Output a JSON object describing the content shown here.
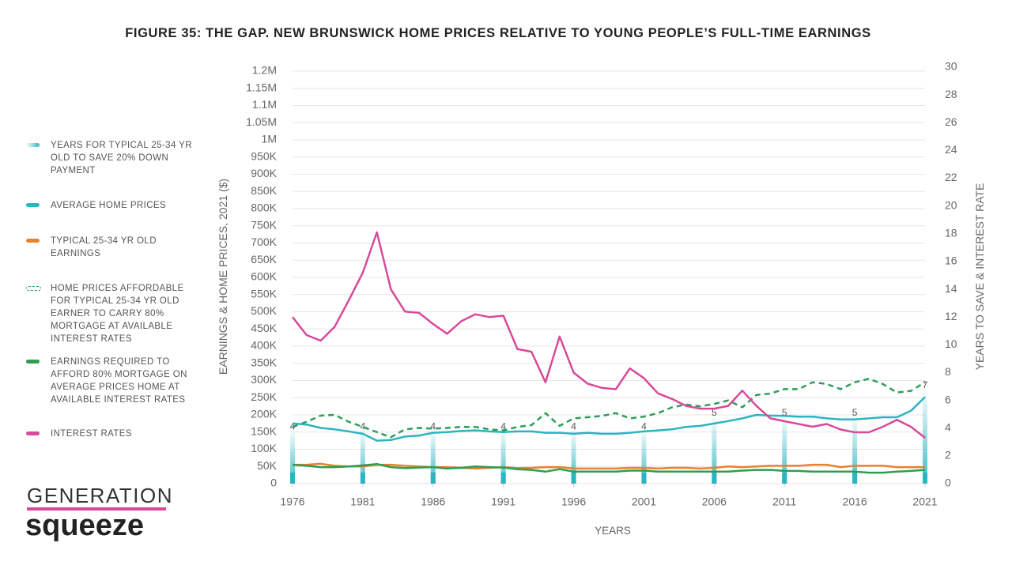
{
  "chart_data": {
    "type": "line",
    "title": "FIGURE 35: THE GAP. NEW BRUNSWICK HOME PRICES RELATIVE TO YOUNG PEOPLE’S FULL-TIME EARNINGS",
    "x_label": "YEARS",
    "y_label": "EARNINGS & HOME PRICES, 2021 ($)",
    "y2_label": "YEARS TO SAVE & INTEREST RATE",
    "brand": [
      "GENERATION",
      "squeeze"
    ],
    "x": [
      1976,
      1977,
      1978,
      1979,
      1980,
      1981,
      1982,
      1983,
      1984,
      1985,
      1986,
      1987,
      1988,
      1989,
      1990,
      1991,
      1992,
      1993,
      1994,
      1995,
      1996,
      1997,
      1998,
      1999,
      2000,
      2001,
      2002,
      2003,
      2004,
      2005,
      2006,
      2007,
      2008,
      2009,
      2010,
      2011,
      2012,
      2013,
      2014,
      2015,
      2016,
      2017,
      2018,
      2019,
      2020,
      2021
    ],
    "xlim": [
      1976,
      2021
    ],
    "xticks": [
      1976,
      1981,
      1986,
      1991,
      1996,
      2001,
      2006,
      2011,
      2016,
      2021
    ],
    "ylim": [
      0,
      1200000
    ],
    "yticks": [
      0,
      {
        "value": 50000,
        "label": "50K"
      },
      {
        "value": 100000,
        "label": "100K"
      },
      {
        "value": 150000,
        "label": "150K"
      },
      {
        "value": 200000,
        "label": "200K"
      },
      {
        "value": 250000,
        "label": "250K"
      },
      {
        "value": 300000,
        "label": "300K"
      },
      {
        "value": 350000,
        "label": "350K"
      },
      {
        "value": 400000,
        "label": "400K"
      },
      {
        "value": 450000,
        "label": "450K"
      },
      {
        "value": 500000,
        "label": "500K"
      },
      {
        "value": 550000,
        "label": "550K"
      },
      {
        "value": 600000,
        "label": "600K"
      },
      {
        "value": 650000,
        "label": "650K"
      },
      {
        "value": 700000,
        "label": "700K"
      },
      {
        "value": 750000,
        "label": "750K"
      },
      {
        "value": 800000,
        "label": "800K"
      },
      {
        "value": 850000,
        "label": "850K"
      },
      {
        "value": 900000,
        "label": "900K"
      },
      {
        "value": 950000,
        "label": "950K"
      },
      {
        "value": 1000000,
        "label": "1M"
      },
      {
        "value": 1050000,
        "label": "1.05M"
      },
      {
        "value": 1100000,
        "label": "1.1M"
      },
      {
        "value": 1150000,
        "label": "1.15M"
      },
      {
        "value": 1200000,
        "label": "1.2M"
      }
    ],
    "y2lim": [
      0,
      30
    ],
    "y2ticks": [
      0,
      2,
      4,
      6,
      8,
      10,
      12,
      14,
      16,
      18,
      20,
      22,
      24,
      26,
      28,
      30
    ],
    "grid": true,
    "years_to_save": {
      "name": "YEARS FOR TYPICAL 25-34 YR OLD TO SAVE 20% DOWN PAYMENT",
      "color": "#2bb5c0",
      "axis": "y2",
      "x": [
        1976,
        1981,
        1986,
        1991,
        1996,
        2001,
        2006,
        2011,
        2016,
        2021
      ],
      "values": [
        4,
        4,
        4,
        4,
        4,
        4,
        5,
        5,
        5,
        7
      ]
    },
    "series": [
      {
        "name": "AVERAGE HOME PRICES",
        "color": "#2bb5c0",
        "style": "solid",
        "values": [
          175000,
          172000,
          162000,
          158000,
          152000,
          145000,
          125000,
          127000,
          137000,
          140000,
          148000,
          150000,
          153000,
          155000,
          152000,
          150000,
          152000,
          152000,
          148000,
          148000,
          145000,
          148000,
          145000,
          145000,
          148000,
          152000,
          155000,
          158000,
          165000,
          168000,
          175000,
          182000,
          190000,
          200000,
          198000,
          197000,
          195000,
          195000,
          190000,
          187000,
          187000,
          190000,
          193000,
          193000,
          212000,
          252000
        ]
      },
      {
        "name": "TYPICAL 25-34 YR OLD EARNINGS",
        "color": "#e8822e",
        "style": "solid",
        "values": [
          55000,
          55000,
          58000,
          52000,
          50000,
          50000,
          55000,
          55000,
          52000,
          50000,
          48000,
          48000,
          46000,
          44000,
          46000,
          48000,
          45000,
          46000,
          48000,
          48000,
          44000,
          44000,
          44000,
          44000,
          46000,
          46000,
          44000,
          46000,
          46000,
          44000,
          46000,
          50000,
          48000,
          50000,
          52000,
          52000,
          52000,
          55000,
          55000,
          48000,
          52000,
          52000,
          52000,
          48000,
          48000,
          48000
        ]
      },
      {
        "name": "HOME PRICES AFFORDABLE FOR TYPICAL 25-34 YR OLD EARNER TO CARRY 80% MORTGAGE AT AVAILABLE INTEREST RATES",
        "color": "#2e9e5b",
        "style": "dashed",
        "values": [
          165000,
          180000,
          198000,
          200000,
          180000,
          165000,
          150000,
          135000,
          158000,
          162000,
          160000,
          162000,
          165000,
          165000,
          158000,
          155000,
          165000,
          170000,
          205000,
          168000,
          190000,
          193000,
          197000,
          205000,
          190000,
          195000,
          205000,
          222000,
          230000,
          225000,
          232000,
          242000,
          222000,
          258000,
          262000,
          275000,
          275000,
          295000,
          290000,
          275000,
          295000,
          305000,
          290000,
          265000,
          270000,
          295000
        ]
      },
      {
        "name": "EARNINGS REQUIRED TO AFFORD 80% MORTGAGE ON AVERAGE PRICES HOME AT AVAILABLE INTEREST RATES",
        "color": "#2e9e4f",
        "style": "solid",
        "values": [
          55000,
          52000,
          48000,
          48000,
          50000,
          53000,
          57000,
          48000,
          45000,
          47000,
          48000,
          44000,
          46000,
          50000,
          48000,
          47000,
          42000,
          40000,
          35000,
          42000,
          35000,
          35000,
          35000,
          35000,
          38000,
          38000,
          35000,
          35000,
          35000,
          35000,
          35000,
          35000,
          38000,
          40000,
          40000,
          37000,
          37000,
          35000,
          35000,
          35000,
          35000,
          32000,
          32000,
          35000,
          37000,
          40000
        ]
      },
      {
        "name": "INTEREST RATES",
        "color": "#d9499a",
        "style": "solid",
        "axis": "y2",
        "values": [
          12,
          10.7,
          10.3,
          11.3,
          13.2,
          15.2,
          18.1,
          14,
          12.4,
          12.3,
          11.5,
          10.8,
          11.7,
          12.2,
          12,
          12.1,
          9.7,
          9.5,
          7.3,
          10.6,
          8,
          7.2,
          6.9,
          6.8,
          8.3,
          7.6,
          6.5,
          6.1,
          5.6,
          5.4,
          5.4,
          5.6,
          6.7,
          5.6,
          4.7,
          4.5,
          4.3,
          4.1,
          4.3,
          3.9,
          3.7,
          3.7,
          4.1,
          4.6,
          4.1,
          3.3
        ]
      }
    ]
  }
}
